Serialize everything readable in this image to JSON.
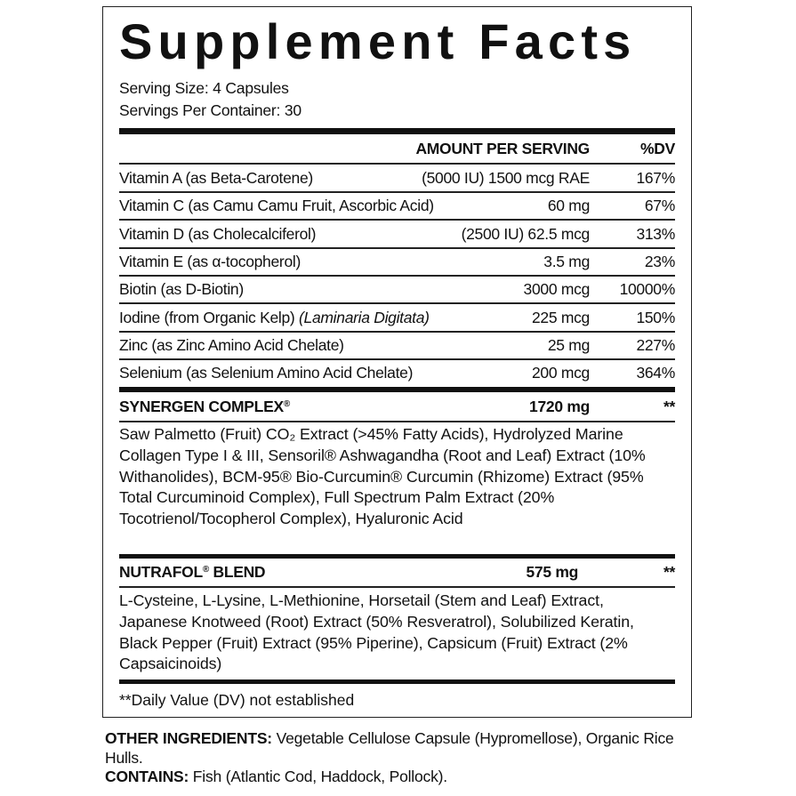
{
  "title": "Supplement Facts",
  "serving_size": "Serving Size: 4 Capsules",
  "servings_per_container": "Servings Per Container: 30",
  "header": {
    "amount": "AMOUNT PER SERVING",
    "dv": "%DV"
  },
  "nutrients": [
    {
      "name": "Vitamin A (as Beta-Carotene)",
      "amount": "(5000 IU) 1500 mcg RAE",
      "dv": "167%"
    },
    {
      "name": "Vitamin C (as Camu Camu Fruit, Ascorbic Acid)",
      "amount": "60 mg",
      "dv": "67%"
    },
    {
      "name": "Vitamin D (as Cholecalciferol)",
      "amount": "(2500 IU) 62.5 mcg",
      "dv": "313%"
    },
    {
      "name": "Vitamin E (as α-tocopherol)",
      "amount": "3.5 mg",
      "dv": "23%"
    },
    {
      "name": "Biotin (as D-Biotin)",
      "amount": "3000 mcg",
      "dv": "10000%"
    },
    {
      "name": "Iodine (from Organic Kelp) ",
      "name_italic": "(Laminaria Digitata)",
      "amount": "225 mcg",
      "dv": "150%"
    },
    {
      "name": "Zinc (as Zinc Amino Acid Chelate)",
      "amount": "25 mg",
      "dv": "227%"
    },
    {
      "name": "Selenium (as Selenium Amino Acid Chelate)",
      "amount": "200 mcg",
      "dv": "364%"
    }
  ],
  "synergen": {
    "name": "SYNERGEN COMPLEX",
    "reg": "®",
    "amount": "1720 mg",
    "dv": "**",
    "ingredients": "Saw Palmetto (Fruit) CO₂ Extract (>45% Fatty Acids), Hydrolyzed Marine Collagen Type I & III, Sensoril® Ashwagandha (Root and Leaf) Extract (10% Withanolides), BCM-95® Bio-Curcumin® Curcumin (Rhizome) Extract (95% Total Curcuminoid Complex), Full Spectrum Palm Extract (20% Tocotrienol/Tocopherol Complex), Hyaluronic Acid"
  },
  "nutrafol": {
    "name": "NUTRAFOL",
    "reg": "®",
    "name_suffix": " BLEND",
    "amount": "575 mg",
    "dv": "**",
    "ingredients": "L-Cysteine, L-Lysine, L-Methionine, Horsetail (Stem and Leaf) Extract, Japanese Knotweed (Root) Extract (50% Resveratrol), Solubilized Keratin, Black Pepper (Fruit) Extract (95% Piperine), Capsicum (Fruit) Extract (2% Capsaicinoids)"
  },
  "footnote": "**Daily Value (DV) not established",
  "other_ingredients": {
    "label": "OTHER INGREDIENTS:",
    "text": " Vegetable Cellulose Capsule (Hypromellose), Organic Rice Hulls."
  },
  "contains": {
    "label": "CONTAINS:",
    "text": " Fish (Atlantic Cod, Haddock, Pollock)."
  }
}
